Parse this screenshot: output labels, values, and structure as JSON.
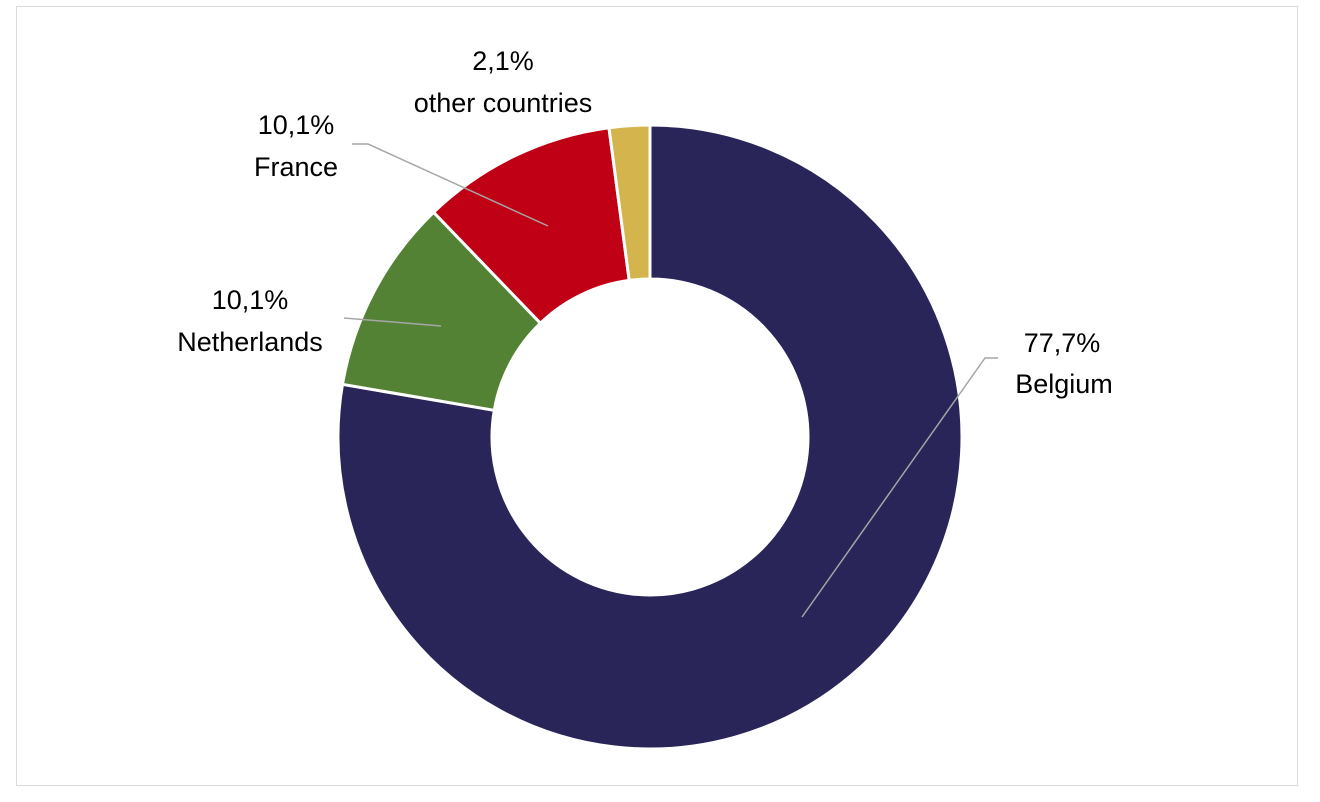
{
  "chart_data": {
    "type": "pie",
    "variant": "donut",
    "title": "",
    "start_angle_deg": 0,
    "direction": "clockwise",
    "unit": "%",
    "slices": [
      {
        "label": "Belgium",
        "value": 77.7,
        "value_text": "77,7%",
        "color": "#2a2559"
      },
      {
        "label": "Netherlands",
        "value": 10.1,
        "value_text": "10,1%",
        "color": "#548235"
      },
      {
        "label": "France",
        "value": 10.1,
        "value_text": "10,1%",
        "color": "#c00014"
      },
      {
        "label": "other countries",
        "value": 2.1,
        "value_text": "2,1%",
        "color": "#d4b44c"
      }
    ],
    "legend": "none",
    "leader_line_color": "#a6a6a6"
  }
}
